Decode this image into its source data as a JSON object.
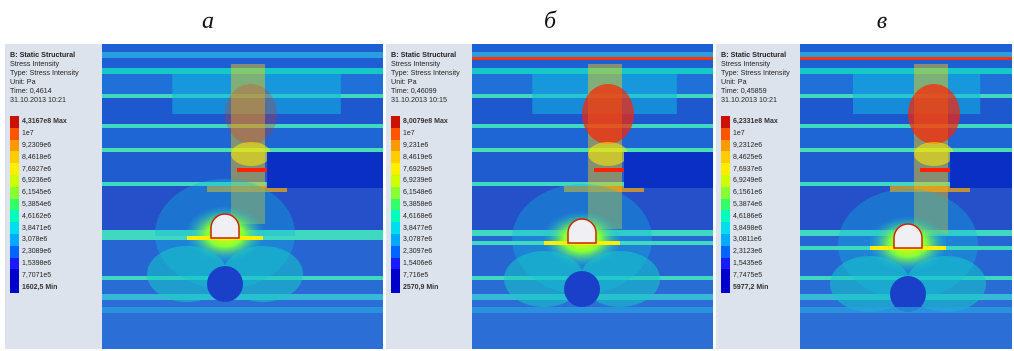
{
  "captions": [
    "а",
    "б",
    "в"
  ],
  "colors": {
    "scale": [
      "#cc1100",
      "#ff5500",
      "#ff9900",
      "#ffcc00",
      "#ffee00",
      "#ccff00",
      "#88ff33",
      "#33ff66",
      "#00ffbb",
      "#00ddee",
      "#00aaff",
      "#0066ff",
      "#1a1aff",
      "#0000cc"
    ],
    "background": "#2255cc",
    "mid": "#11b8e0",
    "hot": "#ff2200"
  },
  "panels": [
    {
      "title": "B: Static Structural",
      "result": "Stress Intensity",
      "type": "Type: Stress Intensity",
      "unit": "Unit: Pa",
      "time": "Time: 0,4614",
      "date": "31.10.2013 10:21",
      "max": "4,3167e8 Max",
      "labels": [
        "1e7",
        "9,2309e6",
        "8,4618e6",
        "7,6927e6",
        "6,9236e6",
        "6,1545e6",
        "5,3854e6",
        "4,6162e6",
        "3,8471e6",
        "3,078e6",
        "2,3089e6",
        "1,5398e6",
        "7,7071e5"
      ],
      "min": "1602,5 Min"
    },
    {
      "title": "B: Static Structural",
      "result": "Stress Intensity",
      "type": "Type: Stress Intensity",
      "unit": "Unit: Pa",
      "time": "Time: 0,46099",
      "date": "31.10.2013 10:15",
      "max": "8,0079e8 Max",
      "labels": [
        "1e7",
        "9,231e6",
        "8,4619e6",
        "7,6929e6",
        "6,9239e6",
        "6,1548e6",
        "5,3858e6",
        "4,6168e6",
        "3,8477e6",
        "3,0787e6",
        "2,3097e6",
        "1,5406e6",
        "7,716e5"
      ],
      "min": "2570,9 Min"
    },
    {
      "title": "B: Static Structural",
      "result": "Stress Intensity",
      "type": "Type: Stress Intensity",
      "unit": "Unit: Pa",
      "time": "Time: 0,45859",
      "date": "31.10.2013 10:21",
      "max": "6,2331e8 Max",
      "labels": [
        "1e7",
        "9,2312e6",
        "8,4625e6",
        "7,6937e6",
        "6,9249e6",
        "6,1561e6",
        "5,3874e6",
        "4,6186e6",
        "3,8498e6",
        "3,0811e6",
        "2,3123e6",
        "1,5435e6",
        "7,7475e5"
      ],
      "min": "5977,2 Min"
    }
  ]
}
